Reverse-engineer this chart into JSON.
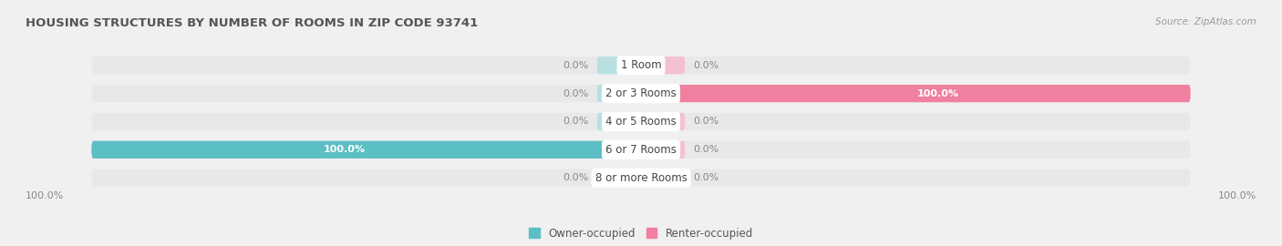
{
  "title": "HOUSING STRUCTURES BY NUMBER OF ROOMS IN ZIP CODE 93741",
  "source": "Source: ZipAtlas.com",
  "categories": [
    "1 Room",
    "2 or 3 Rooms",
    "4 or 5 Rooms",
    "6 or 7 Rooms",
    "8 or more Rooms"
  ],
  "owner_values": [
    0.0,
    0.0,
    0.0,
    100.0,
    0.0
  ],
  "renter_values": [
    0.0,
    100.0,
    0.0,
    0.0,
    0.0
  ],
  "owner_color": "#5bbfc4",
  "renter_color": "#f07fa0",
  "owner_label": "Owner-occupied",
  "renter_label": "Renter-occupied",
  "bg_color": "#f0f0f0",
  "bar_bg_color_owner": "#b8e0e3",
  "bar_bg_color_renter": "#f5c0d0",
  "row_bg_color": "#e8e8e8",
  "title_color": "#555555",
  "value_color": "#888888",
  "axis_label_left": "100.0%",
  "axis_label_right": "100.0%",
  "xlim": 100,
  "stub_size": 8
}
